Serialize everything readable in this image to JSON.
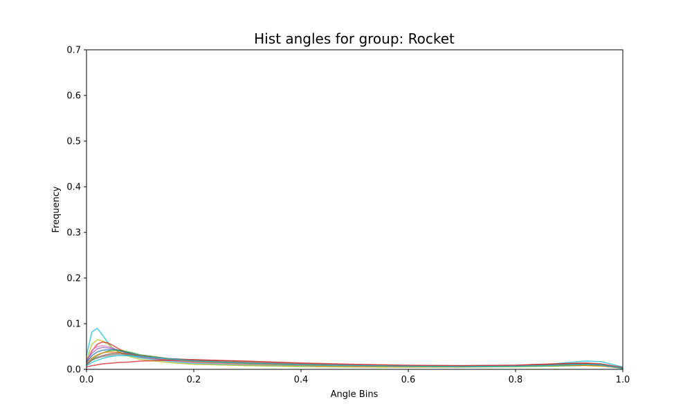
{
  "chart_data": {
    "type": "line",
    "title": "Hist angles for group: Rocket",
    "xlabel": "Angle Bins",
    "ylabel": "Frequency",
    "xlim": [
      0,
      1
    ],
    "ylim": [
      0,
      0.7
    ],
    "xticks": [
      0,
      0.2,
      0.4,
      0.6,
      0.8,
      1
    ],
    "xtick_labels": [
      "0.0",
      "0.2",
      "0.4",
      "0.6",
      "0.8",
      "1.0"
    ],
    "yticks": [
      0,
      0.1,
      0.2,
      0.3,
      0.4,
      0.5,
      0.6,
      0.7
    ],
    "ytick_labels": [
      "0.0",
      "0.1",
      "0.2",
      "0.3",
      "0.4",
      "0.5",
      "0.6",
      "0.7"
    ],
    "grid": false,
    "legend": "none",
    "x": [
      0,
      0.01,
      0.02,
      0.03,
      0.04,
      0.05,
      0.06,
      0.08,
      0.1,
      0.15,
      0.2,
      0.3,
      0.4,
      0.5,
      0.6,
      0.7,
      0.8,
      0.85,
      0.9,
      0.93,
      0.96,
      1.0
    ],
    "series": [
      {
        "color": "#17becf",
        "values": [
          0.03,
          0.082,
          0.09,
          0.075,
          0.058,
          0.045,
          0.038,
          0.03,
          0.025,
          0.018,
          0.013,
          0.009,
          0.007,
          0.006,
          0.005,
          0.005,
          0.007,
          0.01,
          0.015,
          0.018,
          0.017,
          0.005
        ]
      },
      {
        "color": "#bcbd22",
        "values": [
          0.02,
          0.055,
          0.065,
          0.062,
          0.055,
          0.046,
          0.038,
          0.028,
          0.022,
          0.015,
          0.011,
          0.008,
          0.006,
          0.005,
          0.005,
          0.005,
          0.006,
          0.007,
          0.008,
          0.008,
          0.007,
          0.004
        ]
      },
      {
        "color": "#d62728",
        "values": [
          0.015,
          0.04,
          0.055,
          0.06,
          0.058,
          0.052,
          0.045,
          0.035,
          0.027,
          0.02,
          0.016,
          0.012,
          0.009,
          0.007,
          0.006,
          0.006,
          0.008,
          0.01,
          0.012,
          0.013,
          0.011,
          0.003
        ]
      },
      {
        "color": "#e377c2",
        "values": [
          0.018,
          0.042,
          0.05,
          0.052,
          0.05,
          0.046,
          0.041,
          0.033,
          0.027,
          0.02,
          0.015,
          0.011,
          0.009,
          0.007,
          0.006,
          0.006,
          0.007,
          0.008,
          0.009,
          0.009,
          0.008,
          0.003
        ]
      },
      {
        "color": "#9467bd",
        "values": [
          0.02,
          0.035,
          0.045,
          0.048,
          0.047,
          0.045,
          0.042,
          0.035,
          0.028,
          0.021,
          0.017,
          0.013,
          0.01,
          0.008,
          0.007,
          0.007,
          0.008,
          0.009,
          0.01,
          0.011,
          0.01,
          0.003
        ]
      },
      {
        "color": "#1f77b4",
        "values": [
          0.015,
          0.03,
          0.038,
          0.042,
          0.043,
          0.043,
          0.041,
          0.036,
          0.03,
          0.023,
          0.018,
          0.013,
          0.01,
          0.008,
          0.007,
          0.006,
          0.007,
          0.008,
          0.01,
          0.011,
          0.01,
          0.003
        ]
      },
      {
        "color": "#2ca02c",
        "values": [
          0.01,
          0.022,
          0.03,
          0.036,
          0.04,
          0.042,
          0.042,
          0.038,
          0.032,
          0.024,
          0.018,
          0.013,
          0.01,
          0.008,
          0.006,
          0.006,
          0.006,
          0.007,
          0.008,
          0.009,
          0.008,
          0.002
        ]
      },
      {
        "color": "#ff7f0e",
        "values": [
          0.012,
          0.025,
          0.032,
          0.036,
          0.038,
          0.038,
          0.037,
          0.033,
          0.029,
          0.022,
          0.017,
          0.012,
          0.009,
          0.007,
          0.006,
          0.006,
          0.007,
          0.008,
          0.009,
          0.009,
          0.008,
          0.002
        ]
      },
      {
        "color": "#8c564b",
        "values": [
          0.01,
          0.02,
          0.026,
          0.03,
          0.033,
          0.035,
          0.036,
          0.034,
          0.03,
          0.024,
          0.02,
          0.015,
          0.012,
          0.009,
          0.008,
          0.008,
          0.009,
          0.011,
          0.012,
          0.012,
          0.01,
          0.003
        ]
      },
      {
        "color": "#7f7f7f",
        "values": [
          0.012,
          0.02,
          0.025,
          0.028,
          0.03,
          0.032,
          0.033,
          0.032,
          0.029,
          0.024,
          0.021,
          0.017,
          0.013,
          0.01,
          0.008,
          0.007,
          0.008,
          0.01,
          0.011,
          0.011,
          0.009,
          0.003
        ]
      },
      {
        "color": "#d62728",
        "values": [
          0.005,
          0.008,
          0.01,
          0.012,
          0.013,
          0.014,
          0.015,
          0.016,
          0.018,
          0.02,
          0.021,
          0.018,
          0.014,
          0.011,
          0.009,
          0.008,
          0.009,
          0.011,
          0.013,
          0.014,
          0.012,
          0.004
        ]
      },
      {
        "color": "#17becf",
        "values": [
          0.008,
          0.015,
          0.02,
          0.024,
          0.027,
          0.029,
          0.03,
          0.03,
          0.028,
          0.023,
          0.018,
          0.013,
          0.01,
          0.008,
          0.007,
          0.006,
          0.007,
          0.008,
          0.01,
          0.011,
          0.01,
          0.002
        ]
      }
    ]
  }
}
